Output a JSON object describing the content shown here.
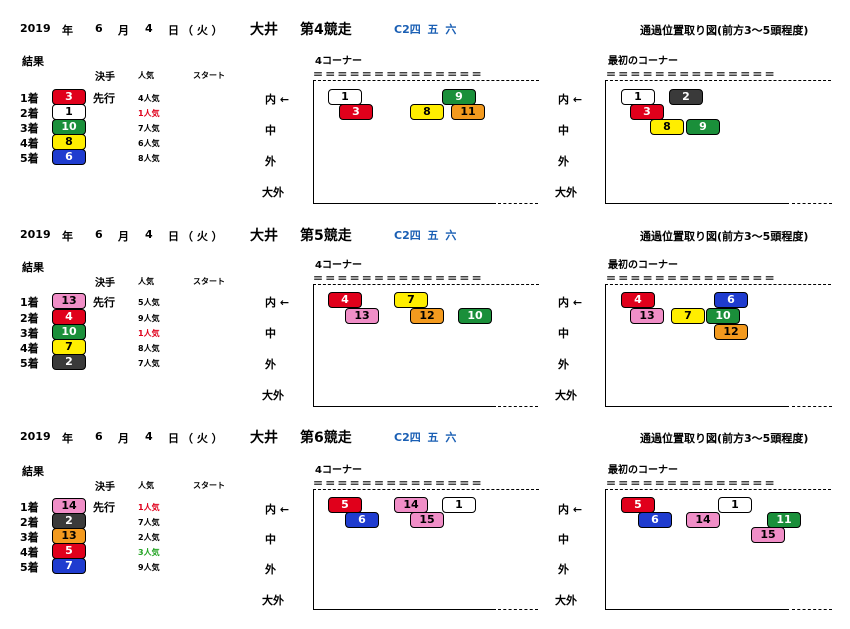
{
  "races": [
    {
      "date": {
        "year": "2019",
        "y_label": "年",
        "month": "6",
        "m_label": "月",
        "day": "4",
        "d_label": "日",
        "weekday": "（ 火 ）"
      },
      "venue": "大井",
      "race_no": "第4競走",
      "class": "C2四 五 六",
      "diagram_title": "通過位置取り図(前方3～5頭程度)",
      "results_label": "結果",
      "headers": {
        "winning_move": "決手",
        "popularity": "人気",
        "start": "スタート"
      },
      "finishers": [
        {
          "rank": "1着",
          "horse": "3",
          "color": "#e0001b",
          "tactic": "先行",
          "pop": "4人気",
          "pop_color": ""
        },
        {
          "rank": "2着",
          "horse": "1",
          "color": "#ffffff",
          "tactic": "",
          "pop": "1人気",
          "pop_color": "#e0001b"
        },
        {
          "rank": "3着",
          "horse": "10",
          "color": "#1a8f3a",
          "tactic": "",
          "pop": "7人気",
          "pop_color": ""
        },
        {
          "rank": "4着",
          "horse": "8",
          "color": "#ffee00",
          "tactic": "",
          "pop": "6人気",
          "pop_color": ""
        },
        {
          "rank": "5着",
          "horse": "6",
          "color": "#1f3ccf",
          "tactic": "",
          "pop": "8人気",
          "pop_color": ""
        }
      ],
      "lanes": [
        "内 ←",
        "中",
        "外",
        "大外"
      ],
      "corner4": {
        "label": "4コーナー",
        "dashes": "＝＝＝＝＝＝＝＝＝＝＝＝＝＝",
        "horses": [
          "1",
          "3",
          "8",
          "9",
          "11"
        ]
      },
      "first_corner": {
        "label": "最初のコーナー",
        "dashes": "＝＝＝＝＝＝＝＝＝＝＝＝＝＝",
        "horses": [
          "1",
          "2",
          "3",
          "8",
          "9"
        ]
      }
    },
    {
      "date": {
        "year": "2019",
        "y_label": "年",
        "month": "6",
        "m_label": "月",
        "day": "4",
        "d_label": "日",
        "weekday": "（ 火 ）"
      },
      "venue": "大井",
      "race_no": "第5競走",
      "class": "C2四 五 六",
      "diagram_title": "通過位置取り図(前方3～5頭程度)",
      "results_label": "結果",
      "headers": {
        "winning_move": "決手",
        "popularity": "人気",
        "start": "スタート"
      },
      "finishers": [
        {
          "rank": "1着",
          "horse": "13",
          "color": "#f08ec7",
          "tactic": "先行",
          "pop": "5人気",
          "pop_color": ""
        },
        {
          "rank": "2着",
          "horse": "4",
          "color": "#e0001b",
          "tactic": "",
          "pop": "9人気",
          "pop_color": ""
        },
        {
          "rank": "3着",
          "horse": "10",
          "color": "#1a8f3a",
          "tactic": "",
          "pop": "1人気",
          "pop_color": "#e0001b"
        },
        {
          "rank": "4着",
          "horse": "7",
          "color": "#ffee00",
          "tactic": "",
          "pop": "8人気",
          "pop_color": ""
        },
        {
          "rank": "5着",
          "horse": "2",
          "color": "#3a3a3a",
          "tactic": "",
          "pop": "7人気",
          "pop_color": ""
        }
      ],
      "lanes": [
        "内 ←",
        "中",
        "外",
        "大外"
      ],
      "corner4": {
        "label": "4コーナー",
        "dashes": "＝＝＝＝＝＝＝＝＝＝＝＝＝＝",
        "horses": [
          "4",
          "7",
          "13",
          "12",
          "10"
        ]
      },
      "first_corner": {
        "label": "最初のコーナー",
        "dashes": "＝＝＝＝＝＝＝＝＝＝＝＝＝＝",
        "horses": [
          "4",
          "6",
          "13",
          "7",
          "10",
          "12"
        ]
      }
    },
    {
      "date": {
        "year": "2019",
        "y_label": "年",
        "month": "6",
        "m_label": "月",
        "day": "4",
        "d_label": "日",
        "weekday": "（ 火 ）"
      },
      "venue": "大井",
      "race_no": "第6競走",
      "class": "C2四 五 六",
      "diagram_title": "通過位置取り図(前方3～5頭程度)",
      "results_label": "結果",
      "headers": {
        "winning_move": "決手",
        "popularity": "人気",
        "start": "スタート"
      },
      "finishers": [
        {
          "rank": "1着",
          "horse": "14",
          "color": "#f08ec7",
          "tactic": "先行",
          "pop": "1人気",
          "pop_color": "#e0001b"
        },
        {
          "rank": "2着",
          "horse": "2",
          "color": "#3a3a3a",
          "tactic": "",
          "pop": "7人気",
          "pop_color": ""
        },
        {
          "rank": "3着",
          "horse": "13",
          "color": "#f39a1e",
          "tactic": "",
          "pop": "2人気",
          "pop_color": ""
        },
        {
          "rank": "4着",
          "horse": "5",
          "color": "#e0001b",
          "tactic": "",
          "pop": "3人気",
          "pop_color": "#21a321"
        },
        {
          "rank": "5着",
          "horse": "7",
          "color": "#1f3ccf",
          "tactic": "",
          "pop": "9人気",
          "pop_color": ""
        }
      ],
      "lanes": [
        "内 ←",
        "中",
        "外",
        "大外"
      ],
      "corner4": {
        "label": "4コーナー",
        "dashes": "＝＝＝＝＝＝＝＝＝＝＝＝＝＝",
        "horses": [
          "5",
          "14",
          "1",
          "6",
          "15"
        ]
      },
      "first_corner": {
        "label": "最初のコーナー",
        "dashes": "＝＝＝＝＝＝＝＝＝＝＝＝＝＝",
        "horses": [
          "5",
          "1",
          "6",
          "14",
          "11",
          "15"
        ]
      }
    }
  ]
}
